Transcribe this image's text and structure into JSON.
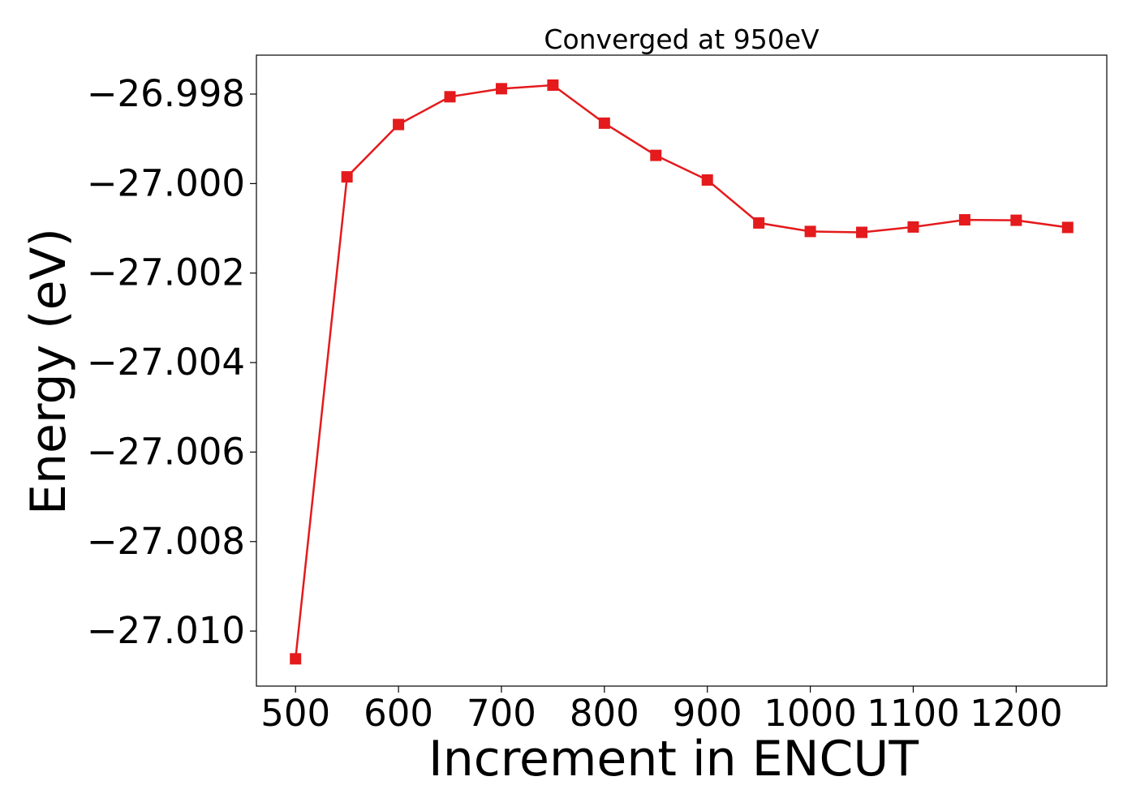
{
  "chart_data": {
    "type": "line",
    "title": "Converged at 950eV",
    "xlabel": "Increment in ENCUT",
    "ylabel": "Energy (eV)",
    "xlim": [
      462,
      1288
    ],
    "ylim": [
      -27.01123,
      -26.99713
    ],
    "xticks": [
      500,
      600,
      700,
      800,
      900,
      1000,
      1100,
      1200
    ],
    "yticks": [
      -26.998,
      -27.0,
      -27.002,
      -27.004,
      -27.006,
      -27.008,
      -27.01
    ],
    "ytick_labels": [
      "−26.998",
      "−27.000",
      "−27.002",
      "−27.004",
      "−27.006",
      "−27.008",
      "−27.010"
    ],
    "grid": false,
    "series": [
      {
        "color": "#e41a1c",
        "marker": "square",
        "x": [
          500,
          550,
          600,
          650,
          700,
          750,
          800,
          850,
          900,
          950,
          1000,
          1050,
          1100,
          1150,
          1200,
          1250
        ],
        "y": [
          -27.01062,
          -26.99985,
          -26.99868,
          -26.99806,
          -26.99788,
          -26.9978,
          -26.99865,
          -26.99937,
          -26.99992,
          -27.00088,
          -27.00107,
          -27.00109,
          -27.00097,
          -27.00081,
          -27.00082,
          -27.00098
        ]
      }
    ]
  }
}
